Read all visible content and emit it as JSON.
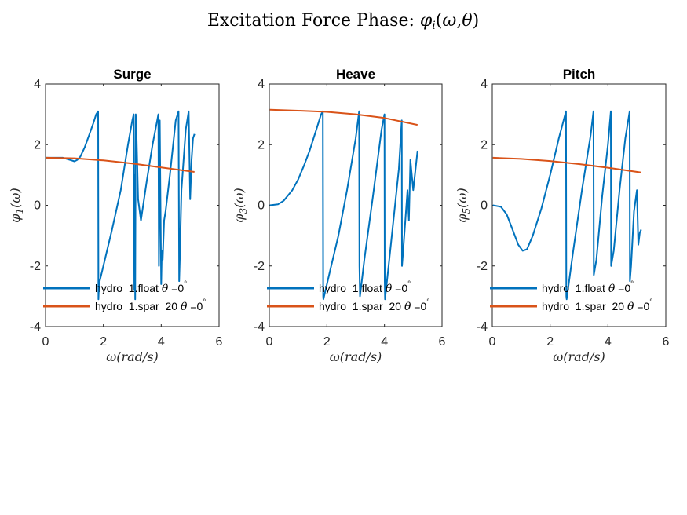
{
  "figure": {
    "title": "Excitation Force Phase: φ_i(ω,θ)",
    "colors": {
      "float": "#0072BD",
      "spar": "#D95319",
      "axes": "#262626"
    }
  },
  "chart_data": [
    {
      "type": "line",
      "title": "Surge",
      "xlabel": "ω(rad/s)",
      "ylabel": "φ_1(ω)",
      "xlim": [
        0,
        6
      ],
      "ylim": [
        -4,
        4
      ],
      "xticks": [
        "0",
        "2",
        "4",
        "6"
      ],
      "yticks": [
        "-4",
        "-2",
        "0",
        "2",
        "4"
      ],
      "legend_position": "bottom-left",
      "series": [
        {
          "name": "hydro_1.float θ =0°",
          "color": "#0072BD",
          "x": [
            0.02,
            0.3,
            0.6,
            0.9,
            1.0,
            1.1,
            1.2,
            1.35,
            1.5,
            1.65,
            1.75,
            1.82,
            1.83,
            1.85,
            2.05,
            2.3,
            2.6,
            2.85,
            3.0,
            3.05,
            3.07,
            3.08,
            3.1,
            3.12,
            3.15,
            3.2,
            3.3,
            3.5,
            3.7,
            3.9,
            3.92,
            3.95,
            4.0,
            4.02,
            4.05,
            4.1,
            4.15,
            4.3,
            4.5,
            4.6,
            4.62,
            4.65,
            4.7,
            4.75,
            4.85,
            4.95,
            5.0,
            5.05,
            5.1,
            5.15
          ],
          "y": [
            1.57,
            1.57,
            1.57,
            1.48,
            1.45,
            1.5,
            1.6,
            1.9,
            2.3,
            2.7,
            3.0,
            3.1,
            -3.1,
            -2.6,
            -1.8,
            -0.8,
            0.5,
            2.0,
            2.8,
            3.0,
            -2.8,
            1.0,
            -3.1,
            3.0,
            2.2,
            0.2,
            -0.5,
            0.8,
            2.0,
            3.0,
            -2.0,
            2.8,
            -2.6,
            -1.5,
            -1.8,
            -0.5,
            -0.2,
            1.0,
            2.8,
            3.1,
            -2.5,
            -1.5,
            0.5,
            1.2,
            2.5,
            3.1,
            0.2,
            1.5,
            2.2,
            2.35
          ]
        },
        {
          "name": "hydro_1.spar_20 θ =0°",
          "color": "#D95319",
          "x": [
            0.02,
            1.0,
            2.0,
            3.0,
            4.0,
            5.15
          ],
          "y": [
            1.57,
            1.55,
            1.48,
            1.38,
            1.25,
            1.1
          ]
        }
      ]
    },
    {
      "type": "line",
      "title": "Heave",
      "xlabel": "ω(rad/s)",
      "ylabel": "φ_3(ω)",
      "xlim": [
        0,
        6
      ],
      "ylim": [
        -4,
        4
      ],
      "xticks": [
        "0",
        "2",
        "4",
        "6"
      ],
      "yticks": [
        "-4",
        "-2",
        "0",
        "2",
        "4"
      ],
      "legend_position": "bottom-left",
      "series": [
        {
          "name": "hydro_1.float θ =0°",
          "color": "#0072BD",
          "x": [
            0.02,
            0.3,
            0.5,
            0.8,
            1.0,
            1.2,
            1.4,
            1.6,
            1.8,
            1.86,
            1.87,
            1.88,
            2.1,
            2.4,
            2.7,
            3.0,
            3.12,
            3.13,
            3.15,
            3.3,
            3.6,
            3.9,
            4.0,
            4.01,
            4.02,
            4.2,
            4.5,
            4.6,
            4.61,
            4.65,
            4.8,
            4.85,
            4.9,
            5.0,
            5.15
          ],
          "y": [
            0.0,
            0.03,
            0.15,
            0.5,
            0.85,
            1.3,
            1.8,
            2.4,
            3.0,
            3.1,
            -3.0,
            -3.1,
            -2.2,
            -1.0,
            0.5,
            2.2,
            3.1,
            -2.0,
            -3.0,
            -1.8,
            0.3,
            2.5,
            3.0,
            -2.5,
            -3.1,
            -1.5,
            1.2,
            2.8,
            -2.0,
            -1.5,
            0.5,
            -0.5,
            1.5,
            0.5,
            1.8
          ]
        },
        {
          "name": "hydro_1.spar_20 θ =0°",
          "color": "#D95319",
          "x": [
            0.02,
            1.0,
            2.0,
            3.0,
            4.0,
            5.15
          ],
          "y": [
            3.15,
            3.12,
            3.08,
            3.0,
            2.88,
            2.65
          ]
        }
      ]
    },
    {
      "type": "line",
      "title": "Pitch",
      "xlabel": "ω(rad/s)",
      "ylabel": "φ_5(ω)",
      "xlim": [
        0,
        6
      ],
      "ylim": [
        -4,
        4
      ],
      "xticks": [
        "0",
        "2",
        "4",
        "6"
      ],
      "yticks": [
        "-4",
        "-2",
        "0",
        "2",
        "4"
      ],
      "legend_position": "bottom-left",
      "series": [
        {
          "name": "hydro_1.float θ =0°",
          "color": "#0072BD",
          "x": [
            0.02,
            0.3,
            0.5,
            0.7,
            0.9,
            1.05,
            1.2,
            1.4,
            1.7,
            2.0,
            2.3,
            2.55,
            2.56,
            2.57,
            2.8,
            3.1,
            3.4,
            3.5,
            3.51,
            3.6,
            3.8,
            4.0,
            4.1,
            4.11,
            4.2,
            4.4,
            4.6,
            4.75,
            4.76,
            4.8,
            4.9,
            5.0,
            5.05,
            5.1,
            5.15
          ],
          "y": [
            0.0,
            -0.05,
            -0.3,
            -0.8,
            -1.3,
            -1.5,
            -1.45,
            -1.0,
            -0.1,
            1.0,
            2.2,
            3.1,
            -3.0,
            -3.1,
            -1.5,
            0.5,
            2.3,
            3.1,
            -2.3,
            -1.8,
            0.3,
            2.0,
            3.1,
            -2.0,
            -1.5,
            0.5,
            2.2,
            3.1,
            -2.5,
            -2.0,
            -0.2,
            0.5,
            -1.3,
            -0.9,
            -0.8
          ]
        },
        {
          "name": "hydro_1.spar_20 θ =0°",
          "color": "#D95319",
          "x": [
            0.02,
            1.0,
            2.0,
            3.0,
            4.0,
            5.15
          ],
          "y": [
            1.57,
            1.53,
            1.46,
            1.36,
            1.24,
            1.08
          ]
        }
      ]
    }
  ]
}
